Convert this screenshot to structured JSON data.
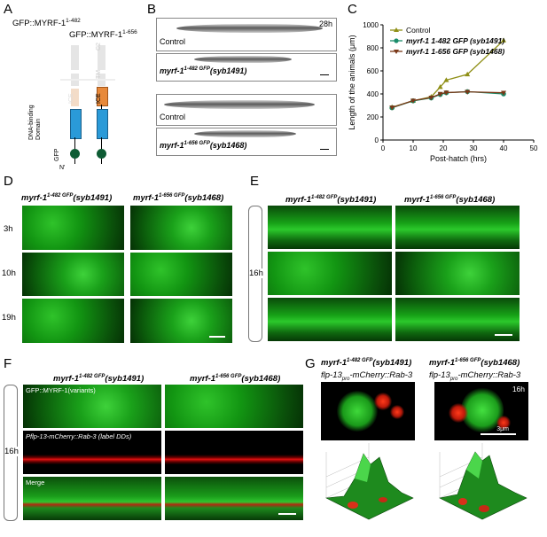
{
  "panels": {
    "A": {
      "letter": "A",
      "title1": "GFP::MYRF-1",
      "title1_sup": "1-482",
      "title2": "GFP::MYRF-1",
      "title2_sup": "1-656",
      "labels": [
        "C2",
        "TM",
        "ICE",
        "ICE",
        "DNA-binding Domain",
        "GFP",
        "N'"
      ],
      "colors": {
        "ice": "#e8893a",
        "dbd": "#2a9ad8",
        "gfp": "#0e5c34"
      }
    },
    "B": {
      "letter": "B",
      "time": "28h",
      "rows": [
        "Control",
        "myrf-1",
        "1-482 GFP",
        "(syb1491)",
        "Control",
        "myrf-1",
        "1-656 GFP",
        "(syb1468)"
      ]
    },
    "C": {
      "letter": "C",
      "legend": [
        {
          "name": "Control",
          "color": "#8f8f16",
          "marker": "triangle"
        },
        {
          "name": "myrf-1 1-482 GFP (syb1491)",
          "color": "#1a8c6a",
          "marker": "circle"
        },
        {
          "name": "myrf-1 1-656 GFP (syb1468)",
          "color": "#7a3818",
          "marker": "triangle-down"
        }
      ]
    },
    "D": {
      "letter": "D",
      "col1": "myrf-1",
      "col1_sup": "1-482 GFP",
      "col1_tail": "(syb1491)",
      "col2": "myrf-1",
      "col2_sup": "1-656 GFP",
      "col2_tail": "(syb1468)",
      "rows": [
        "3h",
        "10h",
        "19h"
      ]
    },
    "E": {
      "letter": "E",
      "col1": "myrf-1",
      "col1_sup": "1-482 GFP",
      "col1_tail": "(syb1491)",
      "col2": "myrf-1",
      "col2_sup": "1-656 GFP",
      "col2_tail": "(syb1468)",
      "time": "16h"
    },
    "F": {
      "letter": "F",
      "col1": "myrf-1",
      "col1_sup": "1-482 GFP",
      "col1_tail": "(syb1491)",
      "col2": "myrf-1",
      "col2_sup": "1-656 GFP",
      "col2_tail": "(syb1468)",
      "time": "16h",
      "row_labels": [
        "GFP::MYRF-1(variants)",
        "Pflp-13-mCherry::Rab-3 (label DDs)",
        "Merge"
      ]
    },
    "G": {
      "letter": "G",
      "col1": "myrf-1",
      "col1_sup": "1-482 GFP",
      "col1_tail": "(syb1491)",
      "col2": "myrf-1",
      "col2_sup": "1-656 GFP",
      "col2_tail": "(syb1468)",
      "sub1": "flp-13",
      "sub1_sub": "pro",
      "sub1_tail": "-mCherry::Rab-3",
      "time": "16h",
      "scale": "3μm"
    }
  },
  "chart_data": {
    "type": "line",
    "title": "",
    "xlabel": "Post-hatch (hrs)",
    "ylabel": "Length of the animals (μm)",
    "xlim": [
      0,
      50
    ],
    "ylim": [
      0,
      1000
    ],
    "xticks": [
      0,
      10,
      20,
      30,
      40,
      50
    ],
    "yticks": [
      0,
      200,
      400,
      600,
      800,
      1000
    ],
    "series": [
      {
        "name": "Control",
        "color": "#8f8f16",
        "marker": "triangle",
        "x": [
          3,
          10,
          16,
          19,
          21,
          28,
          40
        ],
        "y": [
          285,
          340,
          375,
          460,
          520,
          570,
          865
        ]
      },
      {
        "name": "myrf-1 1-482 GFP (syb1491)",
        "color": "#1a8c6a",
        "marker": "circle",
        "x": [
          3,
          10,
          16,
          19,
          21,
          28,
          40
        ],
        "y": [
          280,
          340,
          365,
          395,
          410,
          420,
          400
        ]
      },
      {
        "name": "myrf-1 1-656 GFP (syb1468)",
        "color": "#7a3818",
        "marker": "triangle-down",
        "x": [
          3,
          10,
          16,
          19,
          21,
          28,
          40
        ],
        "y": [
          282,
          342,
          368,
          400,
          412,
          418,
          410
        ]
      }
    ]
  }
}
